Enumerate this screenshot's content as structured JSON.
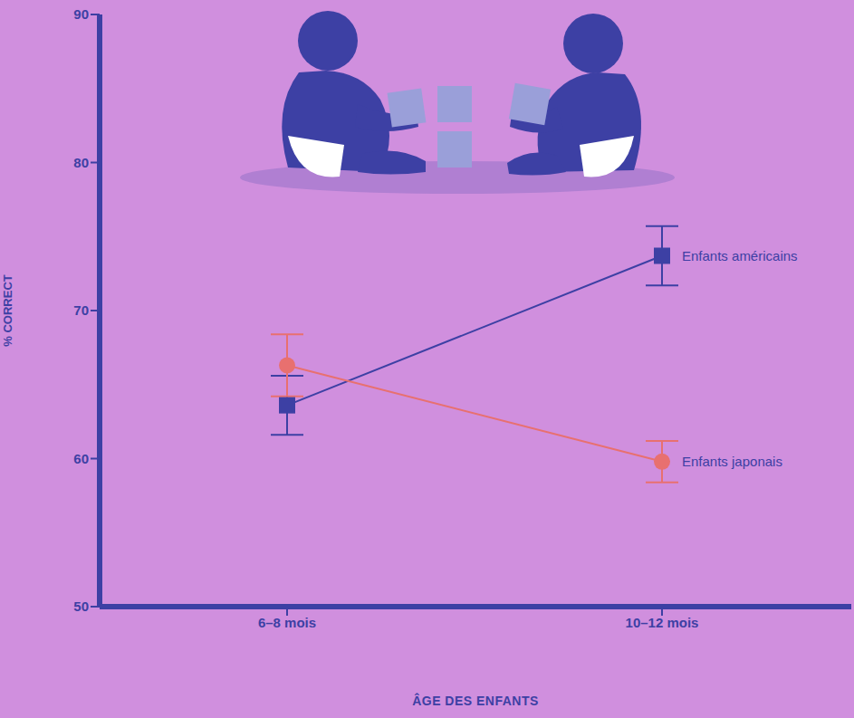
{
  "chart_data": {
    "type": "line",
    "x_label": "ÂGE DES ENFANTS",
    "y_label": "% CORRECT",
    "categories": [
      "6–8 mois",
      "10–12 mois"
    ],
    "ylim": [
      50,
      90
    ],
    "yticks": [
      50,
      60,
      70,
      80,
      90
    ],
    "grid": false,
    "series": [
      {
        "name": "Enfants américains",
        "color": "#3d40a4",
        "marker": "square",
        "values": [
          63.6,
          73.7
        ],
        "errors": [
          2.0,
          2.0
        ]
      },
      {
        "name": "Enfants japonais",
        "color": "#e8706f",
        "marker": "circle",
        "values": [
          66.3,
          59.8
        ],
        "errors": [
          2.1,
          1.4
        ]
      }
    ]
  }
}
